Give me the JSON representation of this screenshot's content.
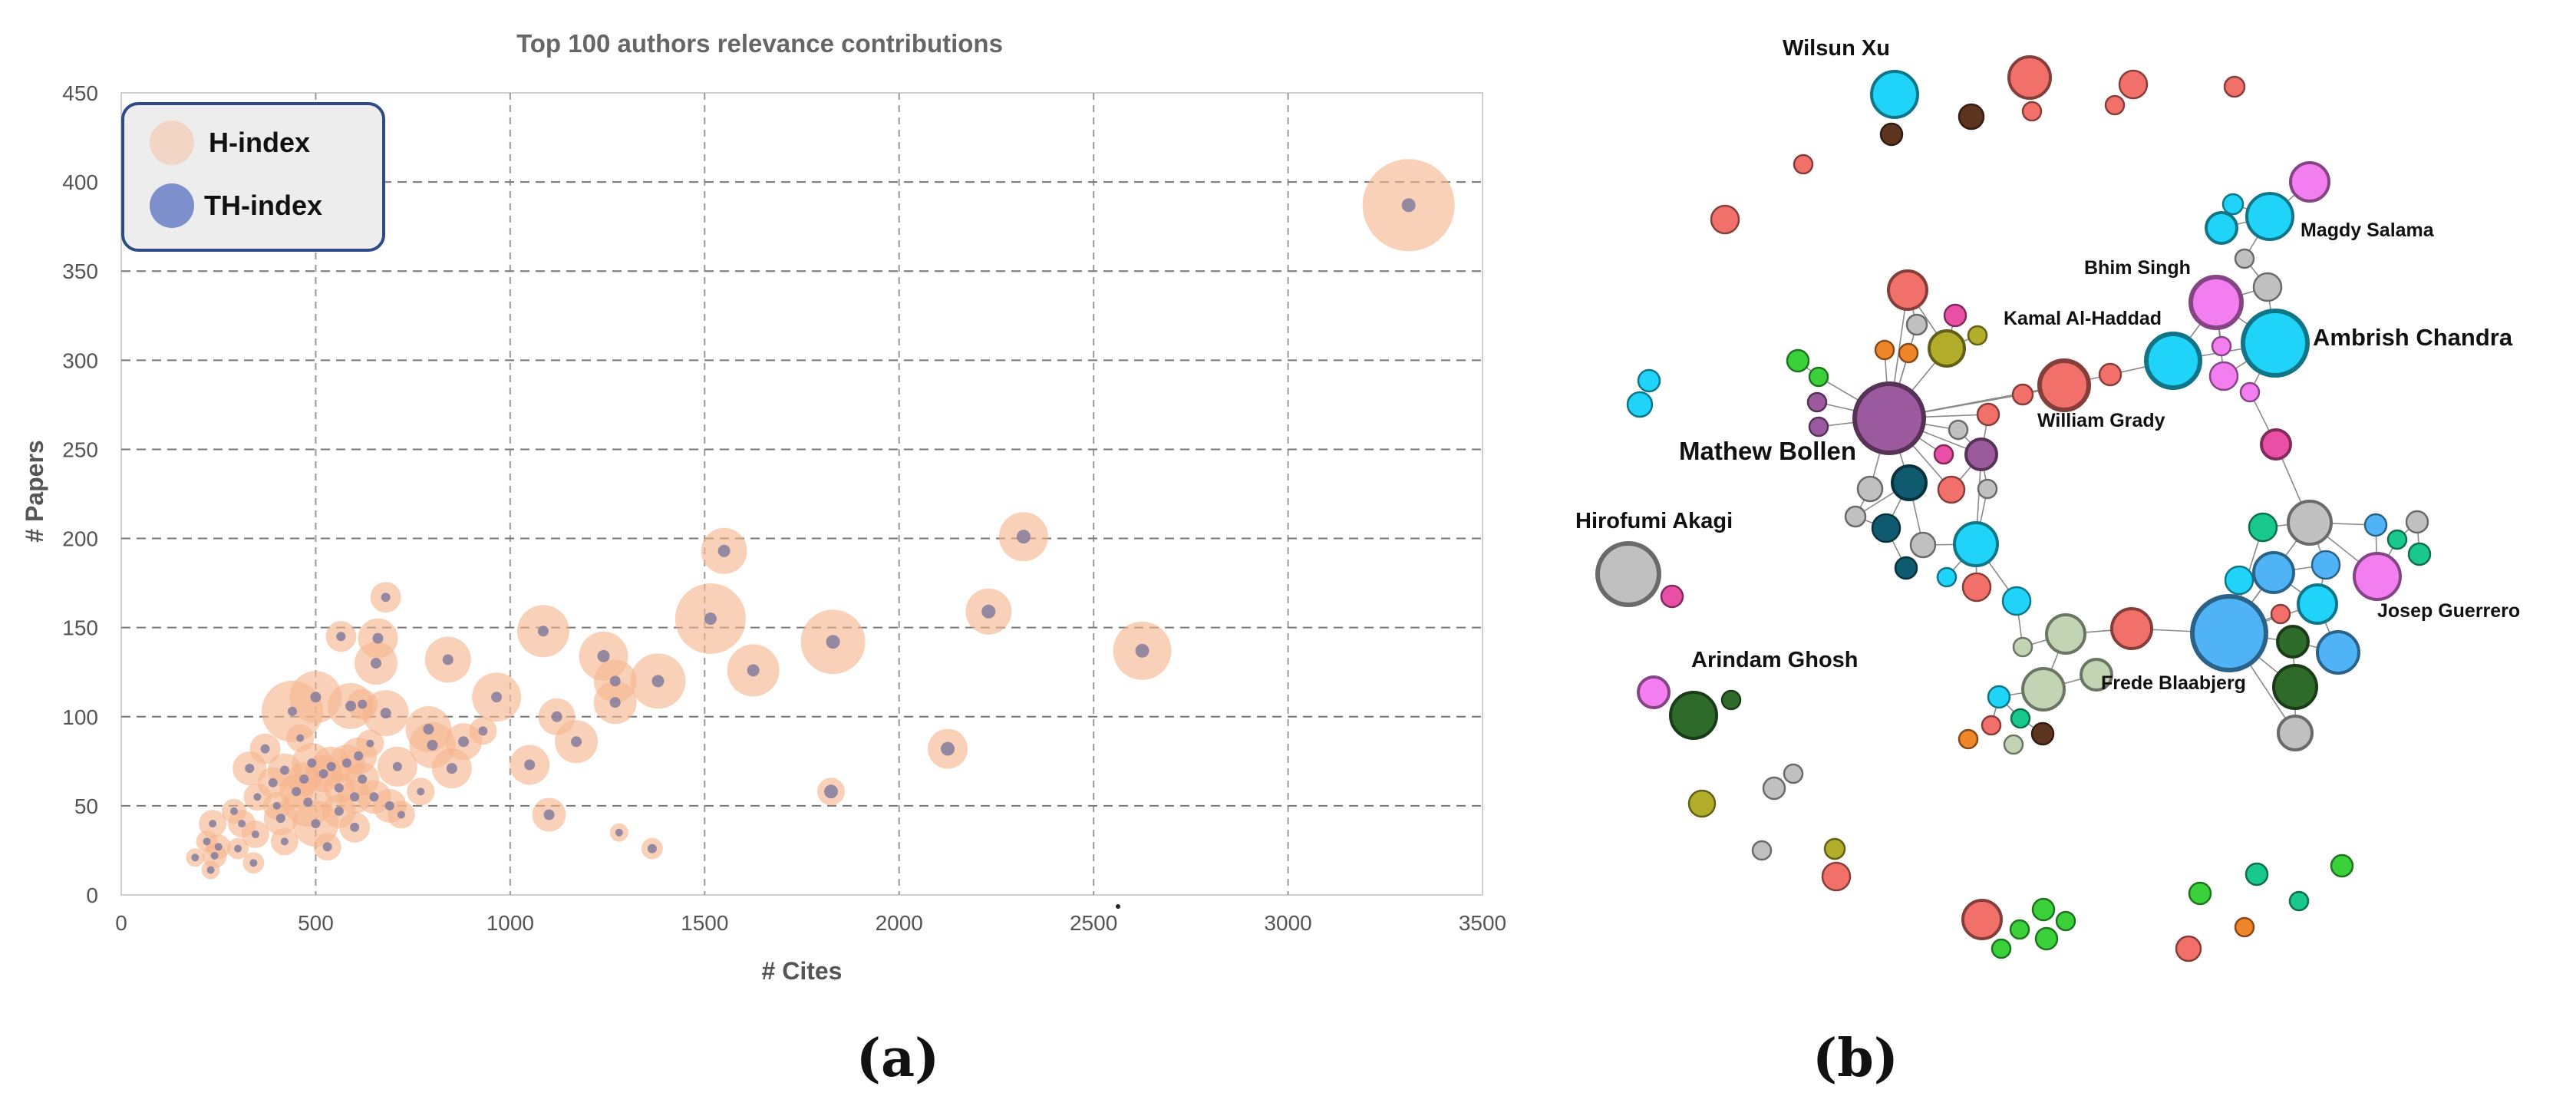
{
  "chart_data": [
    {
      "type": "scatter",
      "title": "Top 100 authors relevance contributions",
      "xlabel": "# Cites",
      "ylabel": "# Papers",
      "xlim": [
        0,
        3500
      ],
      "ylim": [
        0,
        450
      ],
      "xticks": [
        0,
        500,
        1000,
        1500,
        2000,
        2500,
        3000,
        3500
      ],
      "yticks": [
        0,
        50,
        100,
        150,
        200,
        250,
        300,
        350,
        400,
        450
      ],
      "grid": true,
      "legend_position": "top-left",
      "legend": [
        {
          "name": "H-index",
          "color": "#f2d5c4"
        },
        {
          "name": "TH-index",
          "color": "#7d8fcb"
        }
      ],
      "panel_label": "(a)",
      "authors": [
        {
          "cites": 3310,
          "papers": 387,
          "h": 60,
          "th": 18
        },
        {
          "cites": 2320,
          "papers": 201,
          "h": 32,
          "th": 18
        },
        {
          "cites": 2625,
          "papers": 137,
          "h": 38,
          "th": 18
        },
        {
          "cites": 2230,
          "papers": 159,
          "h": 30,
          "th": 18
        },
        {
          "cites": 2125,
          "papers": 82,
          "h": 26,
          "th": 18
        },
        {
          "cites": 1830,
          "papers": 142,
          "h": 42,
          "th": 18
        },
        {
          "cites": 1825,
          "papers": 58,
          "h": 18,
          "th": 18
        },
        {
          "cites": 1550,
          "papers": 193,
          "h": 30,
          "th": 16
        },
        {
          "cites": 1515,
          "papers": 155,
          "h": 46,
          "th": 16
        },
        {
          "cites": 1625,
          "papers": 126,
          "h": 34,
          "th": 16
        },
        {
          "cites": 1380,
          "papers": 120,
          "h": 36,
          "th": 16
        },
        {
          "cites": 1240,
          "papers": 134,
          "h": 32,
          "th": 16
        },
        {
          "cites": 1270,
          "papers": 120,
          "h": 28,
          "th": 14
        },
        {
          "cites": 1270,
          "papers": 108,
          "h": 28,
          "th": 14
        },
        {
          "cites": 1085,
          "papers": 148,
          "h": 34,
          "th": 14
        },
        {
          "cites": 1120,
          "papers": 100,
          "h": 24,
          "th": 14
        },
        {
          "cites": 1170,
          "papers": 86,
          "h": 28,
          "th": 14
        },
        {
          "cites": 1050,
          "papers": 73,
          "h": 26,
          "th": 14
        },
        {
          "cites": 1100,
          "papers": 45,
          "h": 22,
          "th": 14
        },
        {
          "cites": 965,
          "papers": 111,
          "h": 32,
          "th": 14
        },
        {
          "cites": 930,
          "papers": 92,
          "h": 18,
          "th": 12
        },
        {
          "cites": 880,
          "papers": 86,
          "h": 24,
          "th": 14
        },
        {
          "cites": 840,
          "papers": 132,
          "h": 30,
          "th": 14
        },
        {
          "cites": 850,
          "papers": 71,
          "h": 26,
          "th": 14
        },
        {
          "cites": 790,
          "papers": 93,
          "h": 30,
          "th": 14
        },
        {
          "cites": 800,
          "papers": 84,
          "h": 30,
          "th": 14
        },
        {
          "cites": 680,
          "papers": 167,
          "h": 20,
          "th": 12
        },
        {
          "cites": 660,
          "papers": 144,
          "h": 26,
          "th": 14
        },
        {
          "cites": 655,
          "papers": 130,
          "h": 28,
          "th": 14
        },
        {
          "cites": 680,
          "papers": 102,
          "h": 30,
          "th": 14
        },
        {
          "cites": 710,
          "papers": 72,
          "h": 26,
          "th": 12
        },
        {
          "cites": 690,
          "papers": 50,
          "h": 22,
          "th": 12
        },
        {
          "cites": 650,
          "papers": 55,
          "h": 22,
          "th": 12
        },
        {
          "cites": 620,
          "papers": 65,
          "h": 22,
          "th": 12
        },
        {
          "cites": 565,
          "papers": 145,
          "h": 20,
          "th": 12
        },
        {
          "cites": 590,
          "papers": 106,
          "h": 30,
          "th": 14
        },
        {
          "cites": 620,
          "papers": 107,
          "h": 20,
          "th": 12
        },
        {
          "cites": 500,
          "papers": 111,
          "h": 34,
          "th": 14
        },
        {
          "cites": 440,
          "papers": 103,
          "h": 40,
          "th": 12
        },
        {
          "cites": 610,
          "papers": 78,
          "h": 24,
          "th": 12
        },
        {
          "cites": 580,
          "papers": 74,
          "h": 24,
          "th": 12
        },
        {
          "cites": 540,
          "papers": 72,
          "h": 26,
          "th": 12
        },
        {
          "cites": 520,
          "papers": 68,
          "h": 24,
          "th": 12
        },
        {
          "cites": 490,
          "papers": 74,
          "h": 26,
          "th": 12
        },
        {
          "cites": 470,
          "papers": 65,
          "h": 22,
          "th": 12
        },
        {
          "cites": 450,
          "papers": 58,
          "h": 22,
          "th": 12
        },
        {
          "cites": 480,
          "papers": 52,
          "h": 32,
          "th": 12
        },
        {
          "cites": 500,
          "papers": 40,
          "h": 30,
          "th": 12
        },
        {
          "cites": 560,
          "papers": 47,
          "h": 22,
          "th": 12
        },
        {
          "cites": 600,
          "papers": 38,
          "h": 20,
          "th": 12
        },
        {
          "cites": 530,
          "papers": 27,
          "h": 18,
          "th": 12
        },
        {
          "cites": 420,
          "papers": 70,
          "h": 22,
          "th": 12
        },
        {
          "cites": 390,
          "papers": 63,
          "h": 20,
          "th": 12
        },
        {
          "cites": 370,
          "papers": 82,
          "h": 20,
          "th": 12
        },
        {
          "cites": 330,
          "papers": 71,
          "h": 22,
          "th": 12
        },
        {
          "cites": 350,
          "papers": 55,
          "h": 18,
          "th": 10
        },
        {
          "cites": 310,
          "papers": 40,
          "h": 18,
          "th": 10
        },
        {
          "cites": 290,
          "papers": 47,
          "h": 16,
          "th": 10
        },
        {
          "cites": 410,
          "papers": 43,
          "h": 22,
          "th": 12
        },
        {
          "cites": 420,
          "papers": 30,
          "h": 18,
          "th": 10
        },
        {
          "cites": 345,
          "papers": 34,
          "h": 18,
          "th": 10
        },
        {
          "cites": 340,
          "papers": 18,
          "h": 14,
          "th": 10
        },
        {
          "cites": 300,
          "papers": 26,
          "h": 14,
          "th": 10
        },
        {
          "cites": 250,
          "papers": 27,
          "h": 16,
          "th": 10
        },
        {
          "cites": 235,
          "papers": 40,
          "h": 18,
          "th": 10
        },
        {
          "cites": 240,
          "papers": 22,
          "h": 16,
          "th": 10
        },
        {
          "cites": 220,
          "papers": 30,
          "h": 14,
          "th": 10
        },
        {
          "cites": 190,
          "papers": 21,
          "h": 12,
          "th": 10
        },
        {
          "cites": 230,
          "papers": 14,
          "h": 12,
          "th": 10
        },
        {
          "cites": 1365,
          "papers": 26,
          "h": 14,
          "th": 12
        },
        {
          "cites": 1280,
          "papers": 35,
          "h": 12,
          "th": 10
        },
        {
          "cites": 720,
          "papers": 45,
          "h": 18,
          "th": 10
        },
        {
          "cites": 770,
          "papers": 58,
          "h": 18,
          "th": 10
        },
        {
          "cites": 640,
          "papers": 85,
          "h": 18,
          "th": 10
        },
        {
          "cites": 560,
          "papers": 60,
          "h": 20,
          "th": 12
        },
        {
          "cites": 600,
          "papers": 55,
          "h": 22,
          "th": 12
        },
        {
          "cites": 460,
          "papers": 88,
          "h": 18,
          "th": 10
        },
        {
          "cites": 400,
          "papers": 50,
          "h": 18,
          "th": 10
        }
      ]
    },
    {
      "type": "network",
      "panel_label": "(b)",
      "labels": [
        {
          "id": "wilsun",
          "text": "Wilsun Xu"
        },
        {
          "id": "magdy",
          "text": "Magdy Salama"
        },
        {
          "id": "bhim",
          "text": "Bhim Singh"
        },
        {
          "id": "kamal",
          "text": "Kamal Al-Haddad"
        },
        {
          "id": "ambrish",
          "text": "Ambrish Chandra"
        },
        {
          "id": "william",
          "text": "William Grady"
        },
        {
          "id": "mathew",
          "text": "Mathew Bollen"
        },
        {
          "id": "hirofumi",
          "text": "Hirofumi Akagi"
        },
        {
          "id": "arindam",
          "text": "Arindam Ghosh"
        },
        {
          "id": "josep",
          "text": "Josep Guerrero"
        },
        {
          "id": "frede",
          "text": "Frede Blaabjerg"
        }
      ],
      "node_colors": {
        "salmon": "#f2706a",
        "cyan": "#1fd4f8",
        "sky": "#4fb3f6",
        "violet": "#9b5a9d",
        "pink": "#f27ef0",
        "magenta": "#e94fa5",
        "gray": "#c0c0c0",
        "sage": "#c3d4b5",
        "darkgreen": "#2e6b2a",
        "olive": "#b3ad2c",
        "teal": "#0f5a6e",
        "green": "#3ad13a",
        "jade": "#19c88c",
        "brown": "#5c3420",
        "orange": "#f0862a"
      }
    }
  ]
}
